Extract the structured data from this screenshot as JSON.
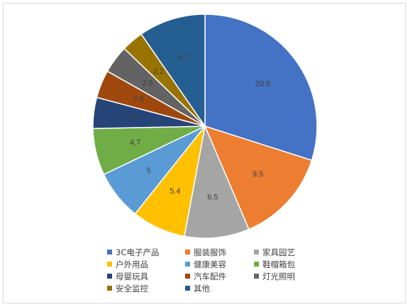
{
  "chart_data": {
    "type": "pie",
    "title": "",
    "categories": [
      "3C电子产品",
      "服装服饰",
      "家具园艺",
      "户外用品",
      "健康美容",
      "鞋帽箱包",
      "母婴玩具",
      "汽车配件",
      "灯光照明",
      "安全监控",
      "其他"
    ],
    "values": [
      20.8,
      9.5,
      6.5,
      5.4,
      5,
      4.7,
      3.1,
      2.8,
      2.8,
      2.2,
      6.7
    ],
    "labels": [
      "20.8",
      "9.5",
      "6.5",
      "5.4",
      "5",
      "4.7",
      "3.1",
      "2.8",
      "2.8",
      "2.2",
      "6.7"
    ],
    "colors": [
      "#4472C4",
      "#ED7D31",
      "#A5A5A5",
      "#FFC000",
      "#5B9BD5",
      "#70AD47",
      "#264478",
      "#9E480E",
      "#636363",
      "#997300",
      "#255E91"
    ],
    "legend_position": "bottom"
  }
}
